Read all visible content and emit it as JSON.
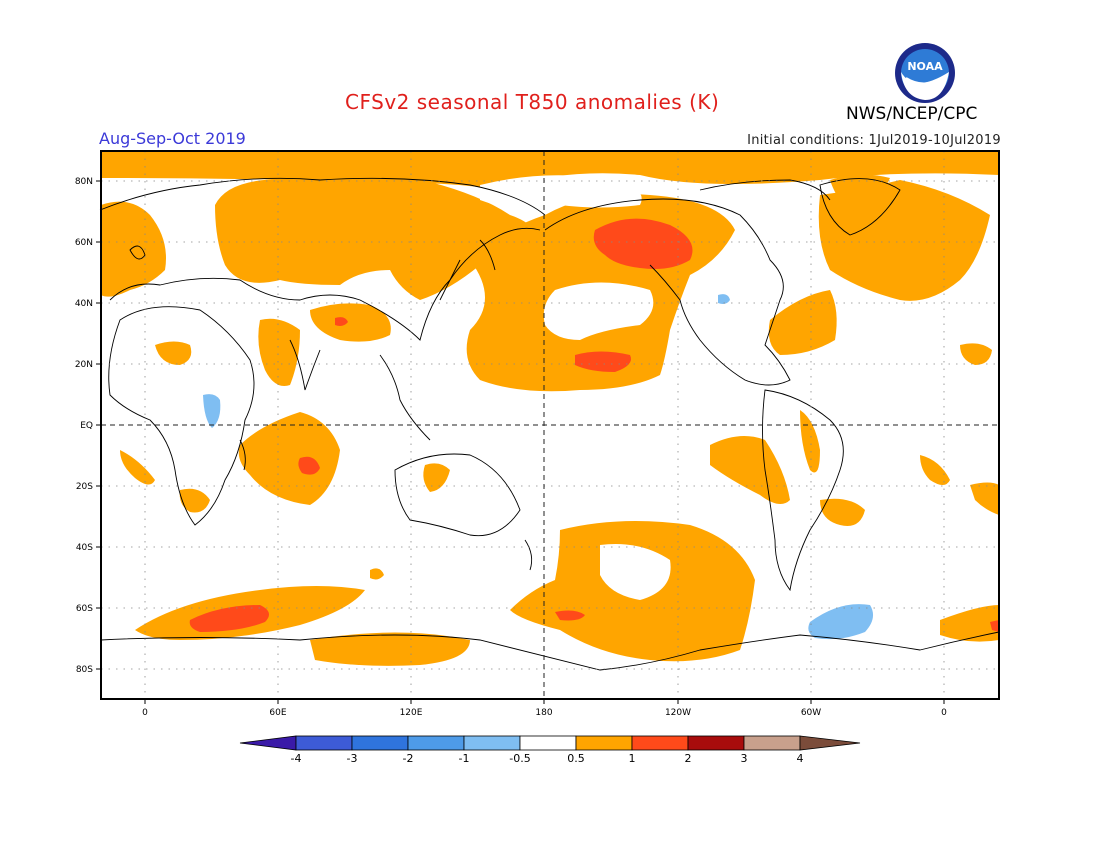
{
  "header": {
    "title": "CFSv2 seasonal T850 anomalies (K)",
    "agency": "NWS/NCEP/CPC",
    "season": "Aug-Sep-Oct 2019",
    "initial_conditions": "Initial conditions: 1Jul2019-10Jul2019",
    "logo_text": "NOAA"
  },
  "map": {
    "lat_labels": [
      "80N",
      "60N",
      "40N",
      "20N",
      "EQ",
      "20S",
      "40S",
      "60S",
      "80S"
    ],
    "lon_labels": [
      "0",
      "60E",
      "120E",
      "180",
      "120W",
      "60W",
      "0"
    ]
  },
  "colorbar": {
    "labels": [
      "-4",
      "-3",
      "-2",
      "-1",
      "-0.5",
      "0.5",
      "1",
      "2",
      "3",
      "4"
    ],
    "colors": [
      "#3a1aa8",
      "#3d5bd6",
      "#2f74dd",
      "#4e9be8",
      "#7fbef2",
      "#ffffff",
      "#ffa500",
      "#ff4a1a",
      "#a80c0c",
      "#c8a08c",
      "#7b4c3a"
    ]
  },
  "colors": {
    "anomaly_05_1": "#ffa500",
    "anomaly_1_2": "#ff4a1a",
    "anomaly_neg_05_1": "#7fbef2",
    "coastline": "#000000",
    "title": "#e0201c",
    "season": "#3b39d8"
  }
}
